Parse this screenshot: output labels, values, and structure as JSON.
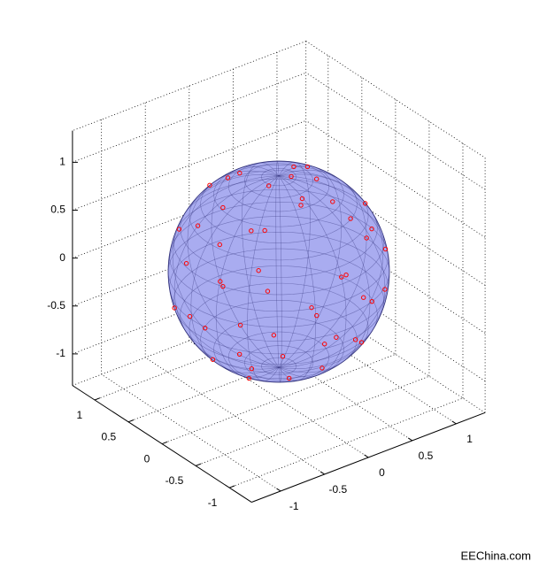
{
  "chart_data": {
    "type": "scatter3d",
    "xlim": [
      -1.33,
      1.33
    ],
    "ylim": [
      -1.33,
      1.33
    ],
    "zlim": [
      -1.33,
      1.33
    ],
    "xticks": [
      -1,
      -0.5,
      0,
      0.5,
      1
    ],
    "yticks": [
      -1,
      -0.5,
      0,
      0.5,
      1
    ],
    "zticks": [
      -1,
      -0.5,
      0,
      0.5,
      1
    ],
    "grid": true,
    "surface": {
      "shape": "sphere",
      "radius": 1,
      "color": "#a9acf0",
      "edge_color": "#30307a"
    },
    "series": [
      {
        "color": "#ff0000",
        "x": [
          1,
          0.61,
          0,
          -0.25,
          -0.47,
          -0.34,
          0.35,
          0.84,
          0.24,
          -0.24,
          -0.93,
          0.38,
          -0.56,
          0.16,
          -0.17,
          0.77,
          0.6,
          -0.07,
          -0.64,
          -0.69,
          0.21,
          0.13,
          -0.97,
          0.74,
          -0.53,
          -0.56,
          0.89,
          0.3,
          -0.35,
          0.34,
          -0.66,
          0,
          -0.16,
          0.13,
          0.75,
          0.85,
          0.58,
          -0.82,
          0,
          0.46,
          -0.78,
          0.5,
          0.26,
          0.49,
          0.99,
          -0.8,
          -0.25,
          -0.09,
          -0.89,
          -0.66
        ],
        "y": [
          0,
          0.61,
          0.87,
          0.43,
          -0.17,
          -0.93,
          -0.61,
          -0.48,
          0.09,
          0.09,
          0.16,
          0.66,
          -0.32,
          -0.93,
          0.98,
          -0.28,
          0.22,
          -0.42,
          -0.76,
          0.58,
          -0.37,
          0.75,
          -0.17,
          -0.62,
          0.63,
          0.1,
          0.16,
          -0.17,
          -0.61,
          -0.94,
          -0.56,
          0.57,
          -0.06,
          0.11,
          0.63,
          -0.15,
          0.33,
          0.48,
          -0.93,
          -0.08,
          -0.14,
          0.86,
          -0.46,
          -0.59,
          -0.09,
          -0.46,
          0.7,
          -0.97,
          -0.33,
          0.12
        ],
        "z": [
          0,
          0.5,
          -0.5,
          0.87,
          -0.87,
          0.17,
          0.71,
          -0.26,
          0.97,
          -0.97,
          0.34,
          -0.64,
          0.77,
          -0.34,
          0.09,
          0.57,
          -0.77,
          0.91,
          -0.09,
          0.42,
          -0.91,
          0.64,
          -0.17,
          0.26,
          -0.57,
          0.82,
          -0.42,
          0.94,
          -0.71,
          0,
          0.5,
          -0.82,
          0.98,
          -0.98,
          0.21,
          -0.5,
          0.74,
          -0.31,
          0.37,
          -0.88,
          0.62,
          -0.14,
          0.85,
          -0.64,
          0.14,
          -0.37,
          0.67,
          -0.21,
          0.31,
          -0.74
        ]
      }
    ],
    "watermark": "EEChina.com"
  }
}
